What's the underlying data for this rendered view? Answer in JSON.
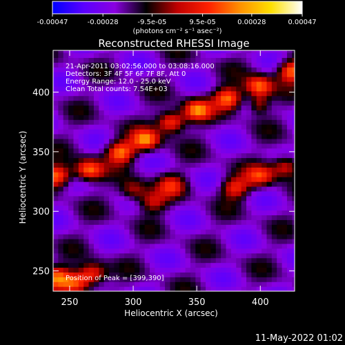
{
  "chart_data": {
    "type": "heatmap",
    "title": "Reconstructed RHESSI Image",
    "xlabel": "Heliocentric X (arcsec)",
    "ylabel": "Heliocentric Y (arcsec)",
    "xlim": [
      237,
      427
    ],
    "ylim": [
      233,
      435
    ],
    "x_ticks": [
      250,
      300,
      350,
      400
    ],
    "y_ticks": [
      250,
      300,
      350,
      400
    ],
    "colorbar": {
      "min": -0.00047,
      "max": 0.00047,
      "ticks": [
        "-0.00047",
        "-0.00028",
        "-9.5e-05",
        "9.5e-05",
        "0.00028",
        "0.00047"
      ],
      "tick_values": [
        -0.00047,
        -0.00028,
        -9.5e-05,
        9.5e-05,
        0.00028,
        0.00047
      ],
      "units": "(photons cm⁻² s⁻¹ asec⁻²)",
      "colors": [
        "#0000ff",
        "#5a00ff",
        "#8a00e0",
        "#000000",
        "#c00000",
        "#ff2000",
        "#ff9000",
        "#ffe000",
        "#ffffff"
      ]
    },
    "annotations": [
      "21-Apr-2011 03:02:56.000 to 03:08:16.000",
      "Detectors: 3F 4F 5F 6F 7F 8F, Att 0",
      "Energy Range: 12.0 - 25.0 keV",
      "Clean     Total counts: 7.54E+03"
    ],
    "peak_text": "Position of Peak = [399,390]",
    "peak": [
      399,
      390
    ],
    "emission_features": [
      {
        "name": "main-ridge",
        "points": [
          [
            240,
            330
          ],
          [
            265,
            335
          ],
          [
            290,
            350
          ],
          [
            310,
            360
          ],
          [
            330,
            375
          ],
          [
            350,
            385
          ],
          [
            375,
            395
          ],
          [
            399,
            405
          ],
          [
            425,
            418
          ]
        ],
        "peak_value": 0.00047
      },
      {
        "name": "lower-arm",
        "points": [
          [
            300,
            318
          ],
          [
            315,
            308
          ],
          [
            330,
            322
          ]
        ],
        "peak_value": 0.00028
      },
      {
        "name": "right-patch",
        "points": [
          [
            380,
            320
          ],
          [
            400,
            330
          ],
          [
            420,
            338
          ]
        ],
        "peak_value": 0.00035
      },
      {
        "name": "bottom-left-blob",
        "points": [
          [
            240,
            245
          ],
          [
            255,
            240
          ],
          [
            268,
            248
          ]
        ],
        "peak_value": 0.0004
      }
    ]
  },
  "footer": {
    "timestamp": "11-May-2022 01:02"
  }
}
